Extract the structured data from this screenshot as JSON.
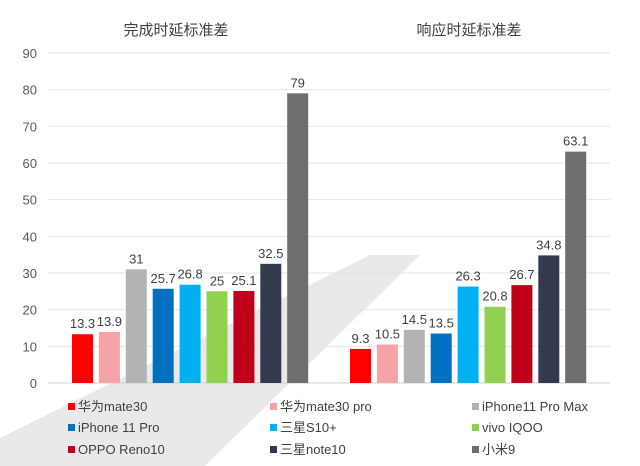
{
  "chart_data": {
    "type": "bar",
    "titles": [
      "完成时延标准差",
      "响应时延标准差"
    ],
    "categories": [
      "完成时延标准差",
      "响应时延标准差"
    ],
    "ylim": [
      0,
      90
    ],
    "yticks": [
      0,
      10,
      20,
      30,
      40,
      50,
      60,
      70,
      80,
      90
    ],
    "grid": true,
    "legend_position": "bottom",
    "series": [
      {
        "name": "华为mate30",
        "color": "#ff0000",
        "values": [
          13.3,
          9.3
        ]
      },
      {
        "name": "华为mate30 pro",
        "color": "#f4a3a6",
        "values": [
          13.9,
          10.5
        ]
      },
      {
        "name": "iPhone11 Pro Max",
        "color": "#b3b3b3",
        "values": [
          31,
          14.5
        ]
      },
      {
        "name": "iPhone 11 Pro",
        "color": "#0070c0",
        "values": [
          25.7,
          13.5
        ]
      },
      {
        "name": "三星S10+",
        "color": "#00b0f0",
        "values": [
          26.8,
          26.3
        ]
      },
      {
        "name": "vivo IQOO",
        "color": "#92d050",
        "values": [
          25,
          20.8
        ]
      },
      {
        "name": "OPPO Reno10",
        "color": "#c00018",
        "values": [
          25.1,
          26.7
        ]
      },
      {
        "name": "三星note10",
        "color": "#333a4d",
        "values": [
          32.5,
          34.8
        ]
      },
      {
        "name": "小米9",
        "color": "#6e6e6e",
        "values": [
          79,
          63.1
        ]
      }
    ]
  }
}
